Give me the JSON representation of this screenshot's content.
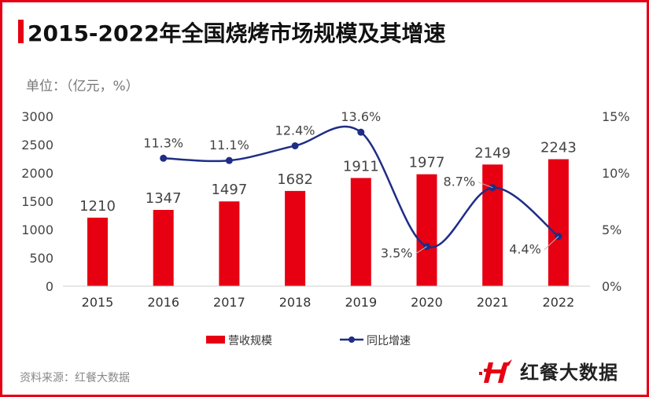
{
  "title": "2015-2022年全国烧烤市场规模及其增速",
  "unit": "单位：（亿元，%）",
  "source": "资料来源：红餐大数据",
  "logo_text": "红餐大数据",
  "colors": {
    "bar": "#e60012",
    "line": "#1f2d86",
    "border": "#e60012"
  },
  "chart_data": {
    "type": "bar+line",
    "categories": [
      "2015",
      "2016",
      "2017",
      "2018",
      "2019",
      "2020",
      "2021",
      "2022"
    ],
    "series": [
      {
        "name": "营收规模",
        "type": "bar",
        "axis": "left",
        "values": [
          1210,
          1347,
          1497,
          1682,
          1911,
          1977,
          2149,
          2243
        ]
      },
      {
        "name": "同比增速",
        "type": "line",
        "axis": "right",
        "values": [
          null,
          11.3,
          11.1,
          12.4,
          13.6,
          3.5,
          8.7,
          4.4
        ],
        "labels": [
          null,
          "11.3%",
          "11.1%",
          "12.4%",
          "13.6%",
          "3.5%",
          "8.7%",
          "4.4%"
        ]
      }
    ],
    "y_left": {
      "range": [
        0,
        3000
      ],
      "ticks": [
        "0",
        "500",
        "1000",
        "1500",
        "2000",
        "2500",
        "3000"
      ]
    },
    "y_right": {
      "range": [
        0,
        15
      ],
      "ticks": [
        "0%",
        "5%",
        "10%",
        "15%"
      ]
    },
    "grid": false,
    "legend": "bottom"
  }
}
